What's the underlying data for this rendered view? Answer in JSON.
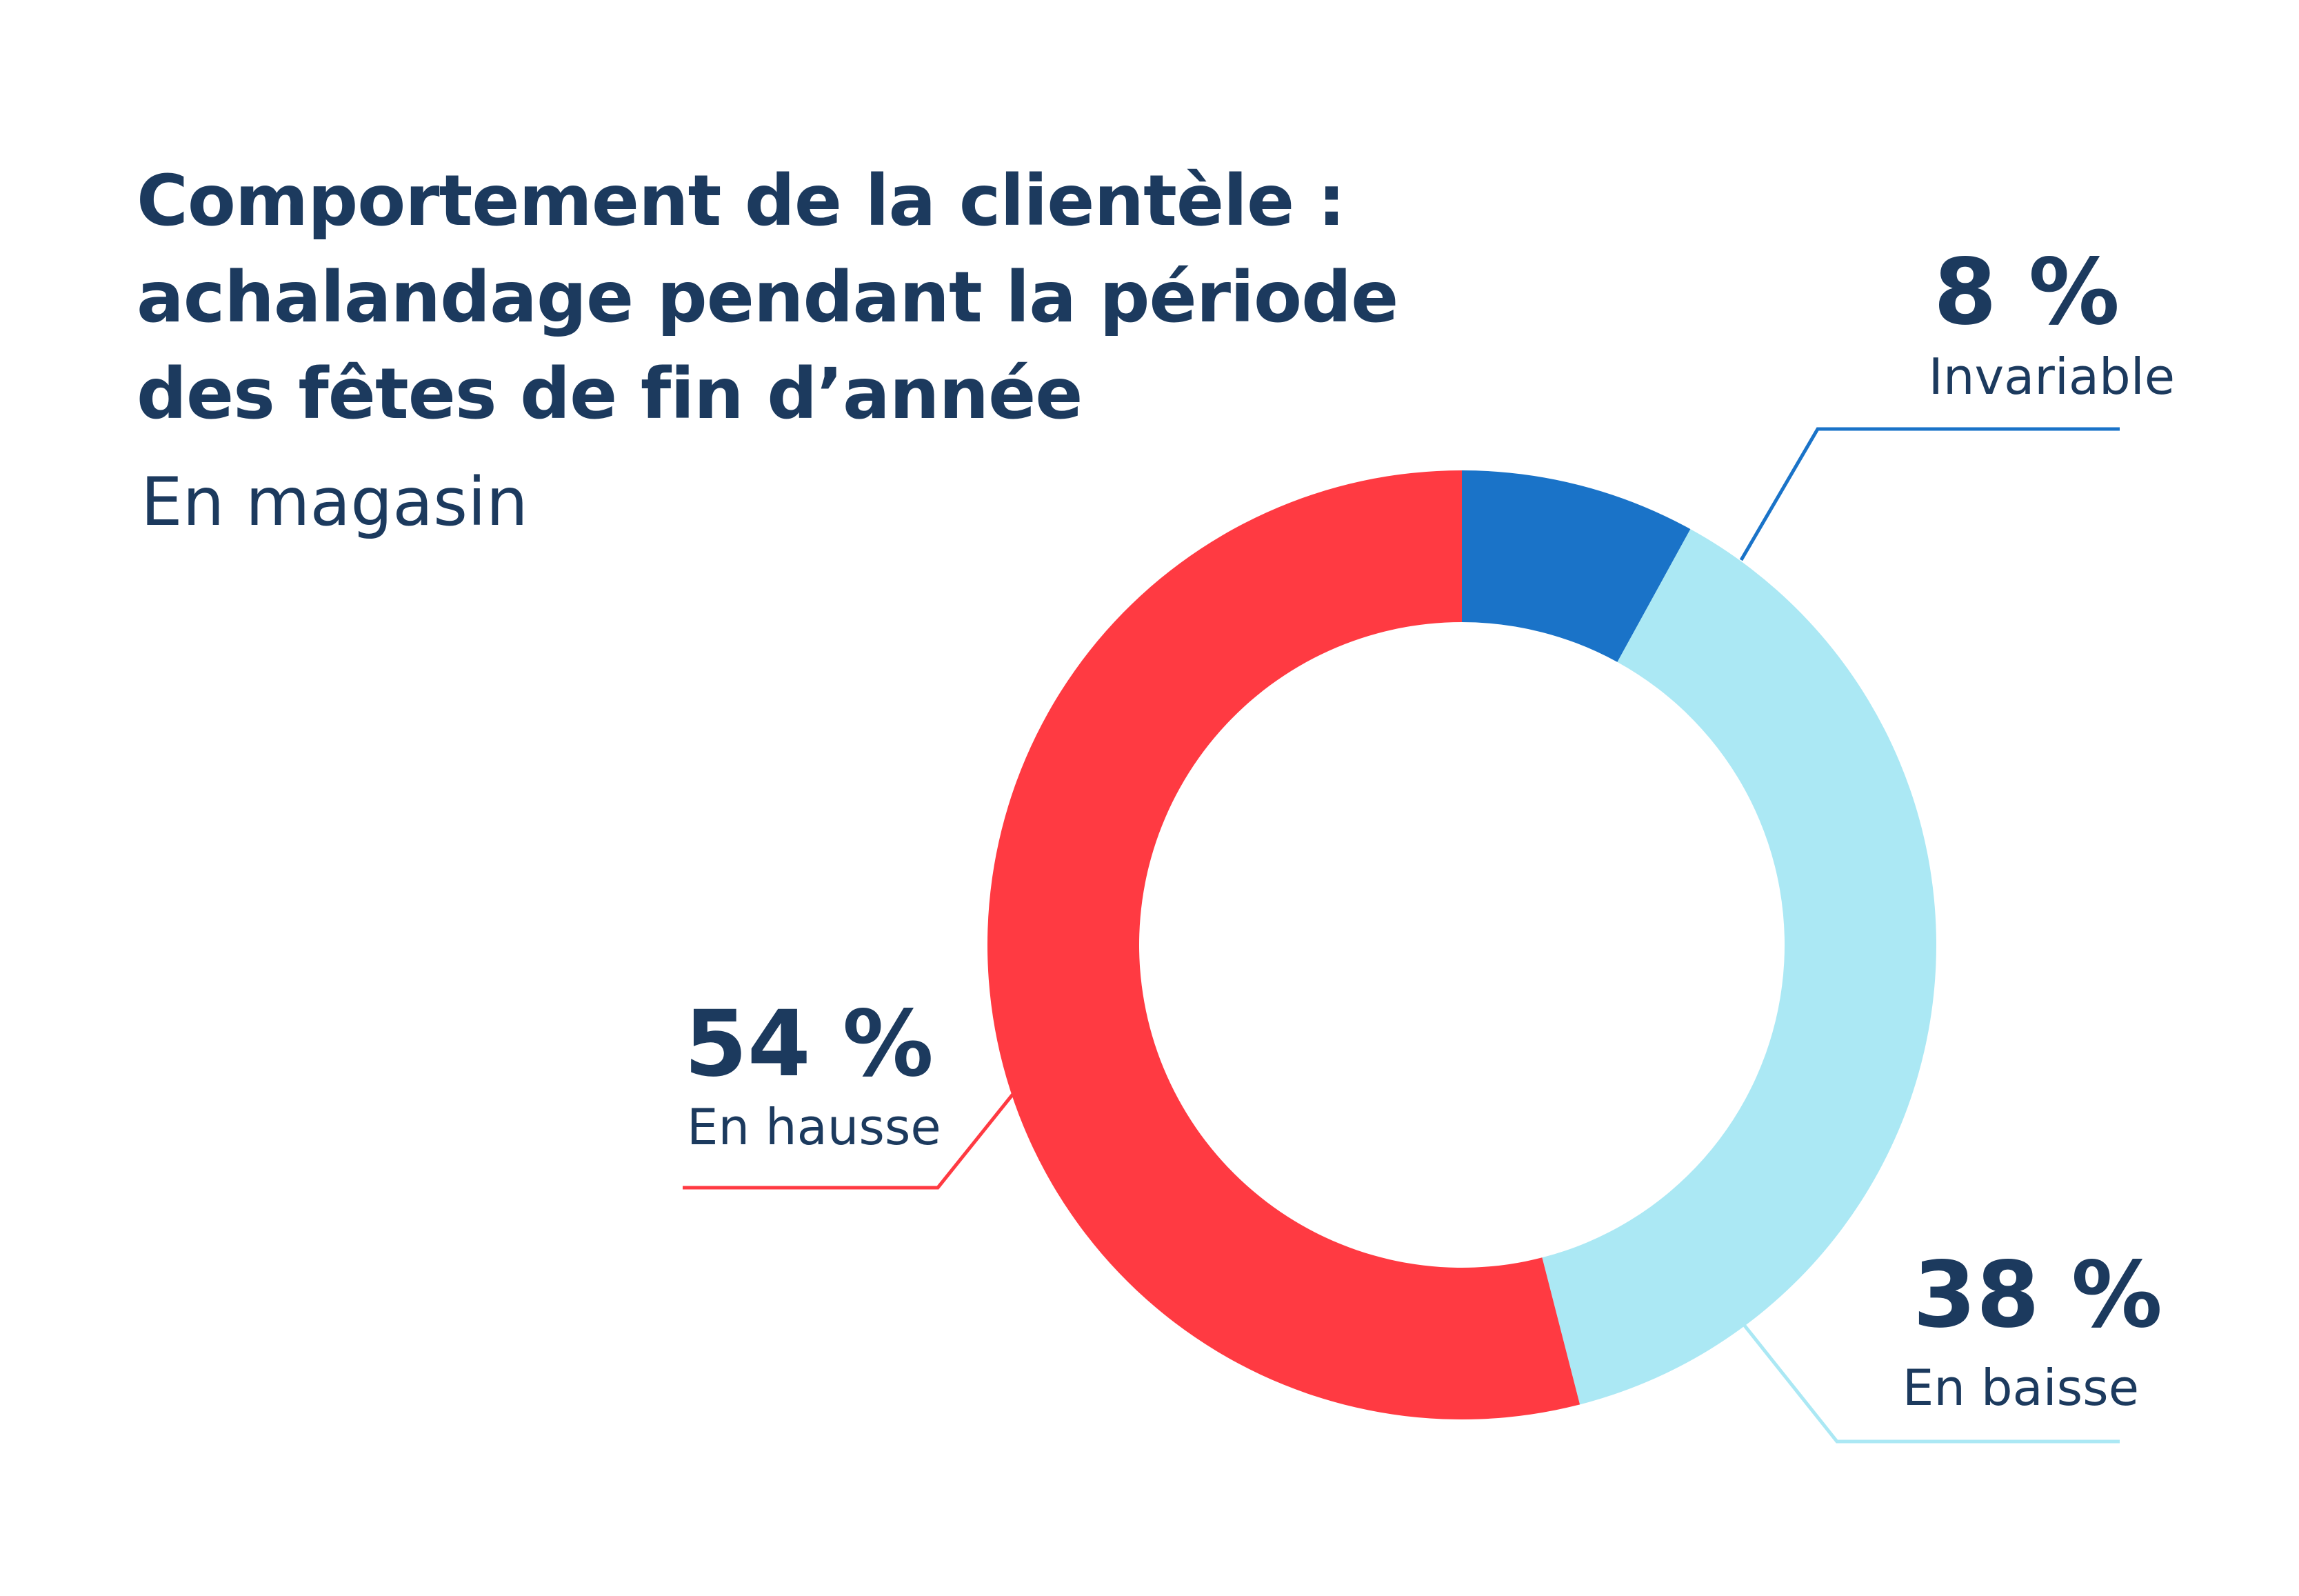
{
  "chart_data": {
    "type": "pie",
    "variant": "donut",
    "title_lines": [
      "Comportement de la clientèle :",
      "achalandage pendant la période",
      "des fêtes de fin d’année"
    ],
    "subtitle": "En magasin",
    "categories": [
      "Invariable",
      "En baisse",
      "En hausse"
    ],
    "values": [
      8,
      38,
      54
    ],
    "value_labels": [
      "8 %",
      "38 %",
      "54 %"
    ],
    "colors": [
      "#1a73c8",
      "#abe8f4",
      "#ff3a42"
    ],
    "start_angle_deg": 0,
    "direction": "clockwise"
  }
}
